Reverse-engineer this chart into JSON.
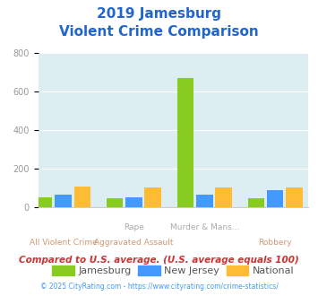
{
  "title_line1": "2019 Jamesburg",
  "title_line2": "Violent Crime Comparison",
  "cat_labels_top": [
    "",
    "Rape",
    "Murder & Mans...",
    ""
  ],
  "cat_labels_bottom": [
    "All Violent Crime",
    "Aggravated Assault",
    "",
    "Robbery"
  ],
  "jamesburg": [
    50,
    45,
    670,
    47
  ],
  "new_jersey": [
    65,
    50,
    65,
    88
  ],
  "national": [
    105,
    103,
    103,
    103
  ],
  "colors": {
    "jamesburg": "#88cc22",
    "new_jersey": "#4499ff",
    "national": "#ffbb33"
  },
  "ylim": [
    0,
    800
  ],
  "yticks": [
    0,
    200,
    400,
    600,
    800
  ],
  "background_color": "#ddeef3",
  "title_color": "#2266cc",
  "tick_color": "#999999",
  "label_top_color": "#aaaaaa",
  "label_bot_color": "#cc9977",
  "footer_text": "Compared to U.S. average. (U.S. average equals 100)",
  "copyright_text": "© 2025 CityRating.com - https://www.cityrating.com/crime-statistics/",
  "legend_labels": [
    "Jamesburg",
    "New Jersey",
    "National"
  ]
}
